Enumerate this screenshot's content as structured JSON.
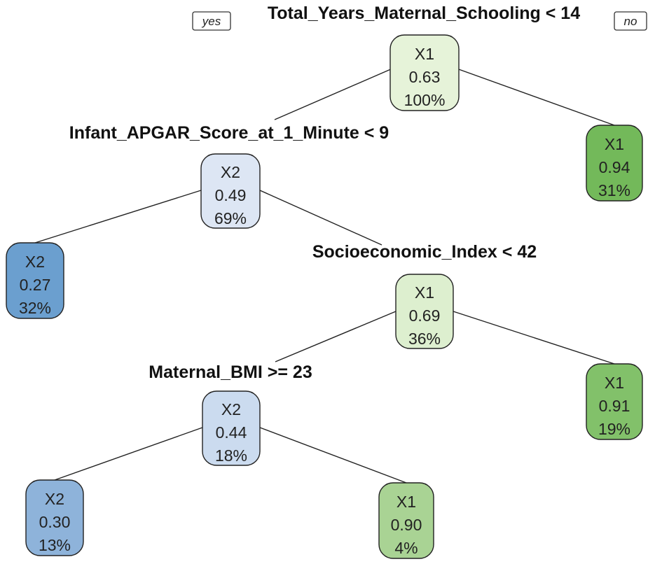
{
  "branch_labels": {
    "yes": "yes",
    "no": "no"
  },
  "splits": [
    {
      "id": "s1",
      "label": "Total_Years_Maternal_Schooling < 14"
    },
    {
      "id": "s2",
      "label": "Infant_APGAR_Score_at_1_Minute < 9"
    },
    {
      "id": "s3",
      "label": "Socioeconomic_Index < 42"
    },
    {
      "id": "s4",
      "label": "Maternal_BMI >= 23"
    }
  ],
  "nodes": [
    {
      "id": "root",
      "class": "X1",
      "value": "0.63",
      "percent": "100%",
      "fill": "#e6f3d9"
    },
    {
      "id": "n2",
      "class": "X2",
      "value": "0.49",
      "percent": "69%",
      "fill": "#dde6f4"
    },
    {
      "id": "leaf3",
      "class": "X1",
      "value": "0.94",
      "percent": "31%",
      "fill": "#73b95a"
    },
    {
      "id": "leaf4",
      "class": "X2",
      "value": "0.27",
      "percent": "32%",
      "fill": "#6b9fcf"
    },
    {
      "id": "n5",
      "class": "X1",
      "value": "0.69",
      "percent": "36%",
      "fill": "#ddefcf"
    },
    {
      "id": "n8",
      "class": "X2",
      "value": "0.44",
      "percent": "18%",
      "fill": "#cbdbef"
    },
    {
      "id": "leaf9",
      "class": "X1",
      "value": "0.91",
      "percent": "19%",
      "fill": "#82c16a"
    },
    {
      "id": "leaf10",
      "class": "X2",
      "value": "0.30",
      "percent": "13%",
      "fill": "#8eb3da"
    },
    {
      "id": "leaf11",
      "class": "X1",
      "value": "0.90",
      "percent": "4%",
      "fill": "#a9d394"
    }
  ],
  "edges": [
    [
      "root",
      "n2"
    ],
    [
      "root",
      "leaf3"
    ],
    [
      "n2",
      "leaf4"
    ],
    [
      "n2",
      "n5"
    ],
    [
      "n5",
      "n8"
    ],
    [
      "n5",
      "leaf9"
    ],
    [
      "n8",
      "leaf10"
    ],
    [
      "n8",
      "leaf11"
    ]
  ]
}
